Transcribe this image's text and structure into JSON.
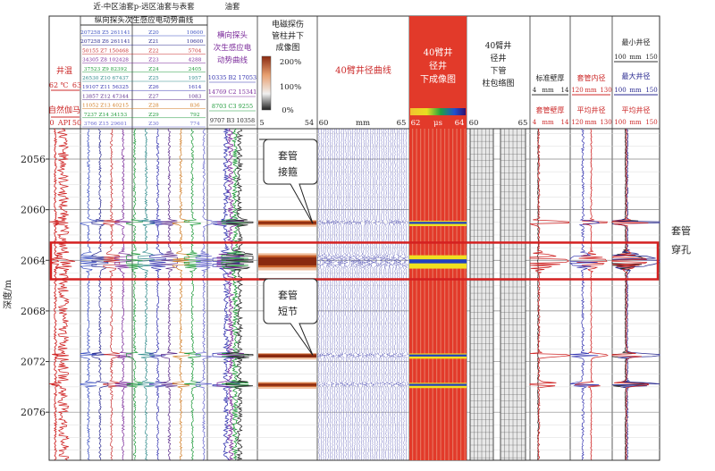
{
  "chart_data": {
    "type": "well-log",
    "ylabel": "深度/m",
    "depth_ticks": [
      2056,
      2060,
      2064,
      2068,
      2072,
      2076
    ],
    "depth_range": [
      2053.6,
      2079.8
    ],
    "tracks": [
      {
        "id": "temp",
        "labels": [
          "井温",
          "62",
          "℃",
          "63",
          "自然伽马",
          "0",
          "API",
          "50"
        ]
      },
      {
        "id": "emf",
        "group_label": "近-中区油套p-远区油套与表套",
        "title": "纵向探头次生感应电动势曲线",
        "legend": [
          [
            "207258 Z5 261141",
            "Z20",
            "10600"
          ],
          [
            "207258 Z6 261141",
            "Z21",
            "10600"
          ],
          [
            "50155 Z7 150468",
            "Z22",
            "5704"
          ],
          [
            "34305 Z8 102428",
            "Z23",
            "4288"
          ],
          [
            "37523 Z9 82392",
            "Z24",
            "2405"
          ],
          [
            "26530 Z10 67437",
            "Z25",
            "1957"
          ],
          [
            "19107 Z11 56325",
            "Z26",
            "1614"
          ],
          [
            "13857 Z12 47344",
            "Z27",
            "1083"
          ],
          [
            "11052 Z13 40215",
            "Z28",
            "836"
          ],
          [
            "7237 Z14 34153",
            "Z29",
            "792"
          ],
          [
            "3766 Z15 29601",
            "Z30",
            "774"
          ]
        ]
      },
      {
        "id": "trans",
        "group_label": "油套",
        "title": "横向探头次生感应电动势曲线",
        "legend": [
          "10335 B2 17053",
          "14769 C2 15341",
          "8703 C3 9255",
          "9707 B3 10358"
        ]
      },
      {
        "id": "em_image",
        "title": "电磁探伤管柱井下成像图",
        "scale": [
          "200%",
          "100%",
          "0%"
        ],
        "range": [
          "5",
          "54"
        ]
      },
      {
        "id": "arm_curves",
        "title": "40臂井径曲线",
        "range": [
          "60",
          "mm",
          "65"
        ]
      },
      {
        "id": "arm_image",
        "title": "40臂井径井下成像图",
        "range": [
          "62",
          "μs",
          "64"
        ]
      },
      {
        "id": "arm_wrap",
        "title": "40臂井径井下管柱包络图",
        "range": [
          "60",
          "65"
        ]
      },
      {
        "id": "thick",
        "labels": [
          "标准壁厚",
          "4",
          "mm",
          "14",
          "套管壁厚",
          "4",
          "mm",
          "14"
        ]
      },
      {
        "id": "inner",
        "labels": [
          "套管内径",
          "120",
          "mm",
          "130",
          "平均井径",
          "120",
          "mm",
          "130"
        ]
      },
      {
        "id": "caliper",
        "labels": [
          "最小井径",
          "100",
          "mm",
          "150",
          "最大井径",
          "100",
          "mm",
          "150",
          "平均井径",
          "100",
          "mm",
          "150"
        ]
      }
    ],
    "annotations": [
      {
        "text": "套管接箍",
        "depth": 2061.1
      },
      {
        "text": "套管短节",
        "depth": 2071.5
      },
      {
        "text": "套管穿孔",
        "depth": 2064.0
      }
    ],
    "events": [
      {
        "type": "perforation",
        "depth_from": 2062.6,
        "depth_to": 2065.5
      },
      {
        "type": "collar",
        "depth": 2061.0
      },
      {
        "type": "collar",
        "depth": 2071.5
      },
      {
        "type": "collar",
        "depth": 2073.8
      }
    ]
  },
  "colors": {
    "highlight": "#d42020",
    "annotation_text": "#d42020",
    "header_red": "#cc2a2a",
    "curve_red": "#d02828",
    "curve_blue": "#3434b0",
    "curve_green": "#1e9a3a",
    "curve_purple": "#7a2a9a"
  }
}
